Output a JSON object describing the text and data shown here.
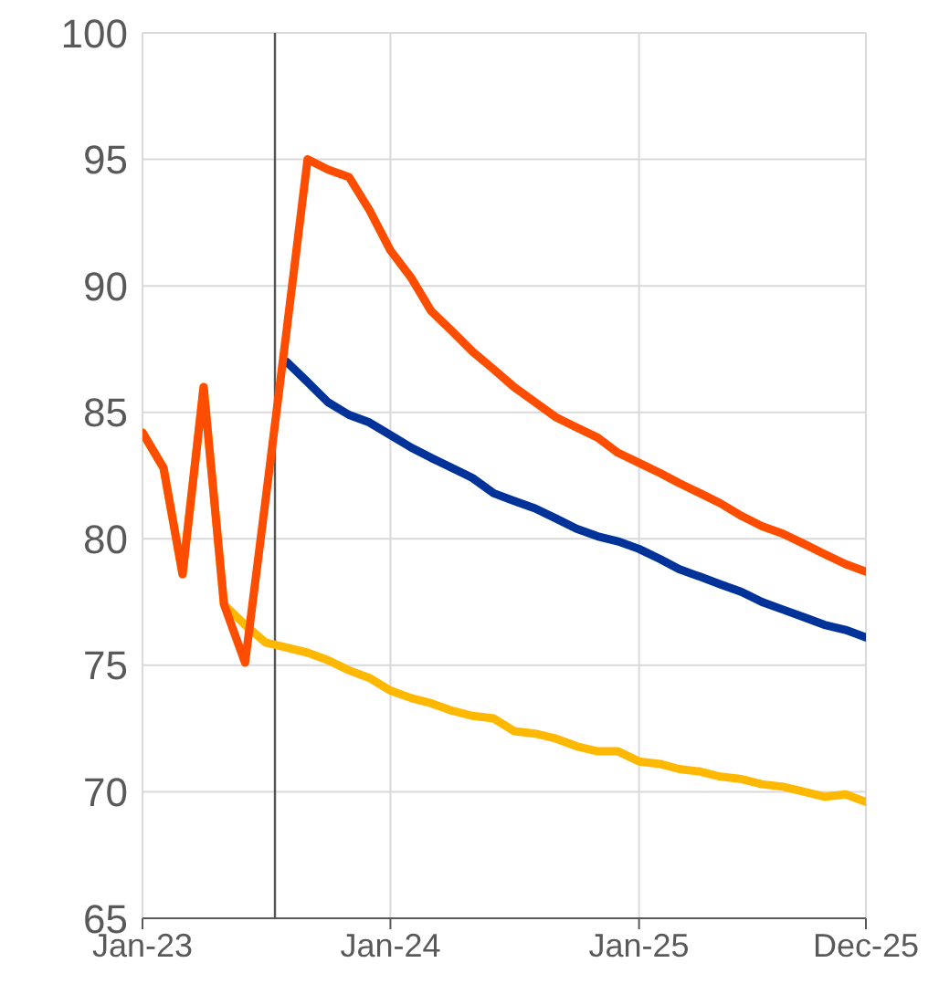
{
  "chart_data": {
    "type": "line",
    "x": [
      "2023-01",
      "2023-02",
      "2023-03",
      "2023-04",
      "2023-05",
      "2023-06",
      "2023-07",
      "2023-08",
      "2023-09",
      "2023-10",
      "2023-11",
      "2023-12",
      "2024-01",
      "2024-02",
      "2024-03",
      "2024-04",
      "2024-05",
      "2024-06",
      "2024-07",
      "2024-08",
      "2024-09",
      "2024-10",
      "2024-11",
      "2024-12",
      "2025-01",
      "2025-02",
      "2025-03",
      "2025-04",
      "2025-05",
      "2025-06",
      "2025-07",
      "2025-08",
      "2025-09",
      "2025-10",
      "2025-11",
      "2025-12"
    ],
    "series": [
      {
        "color": "#ffb800",
        "values": [
          84.2,
          82.8,
          78.6,
          86.0,
          77.4,
          76.6,
          75.9,
          75.7,
          75.5,
          75.2,
          74.8,
          74.5,
          74.0,
          73.7,
          73.5,
          73.2,
          73.0,
          72.9,
          72.4,
          72.3,
          72.1,
          71.8,
          71.6,
          71.6,
          71.2,
          71.1,
          70.9,
          70.8,
          70.6,
          70.5,
          70.3,
          70.2,
          70.0,
          69.8,
          69.9,
          69.6
        ]
      },
      {
        "color": "#003399",
        "values": [
          null,
          null,
          null,
          null,
          null,
          null,
          null,
          87.0,
          86.2,
          85.4,
          84.9,
          84.6,
          84.1,
          83.6,
          83.2,
          82.8,
          82.4,
          81.8,
          81.5,
          81.2,
          80.8,
          80.4,
          80.1,
          79.9,
          79.6,
          79.2,
          78.8,
          78.5,
          78.2,
          77.9,
          77.5,
          77.2,
          76.9,
          76.6,
          76.4,
          76.1
        ]
      },
      {
        "color": "#ff4d00",
        "values": [
          84.2,
          82.8,
          78.6,
          86.0,
          77.4,
          75.1,
          81.5,
          88.2,
          95.0,
          94.6,
          94.3,
          93.0,
          91.4,
          90.3,
          89.0,
          88.2,
          87.4,
          86.7,
          86.0,
          85.4,
          84.8,
          84.4,
          84.0,
          83.4,
          83.0,
          82.6,
          82.2,
          81.8,
          81.4,
          80.9,
          80.5,
          80.2,
          79.8,
          79.4,
          79.0,
          78.7
        ]
      }
    ],
    "xlim": [
      "2023-01",
      "2025-12"
    ],
    "xticks": [
      {
        "value": "2023-01",
        "label": "Jan-23"
      },
      {
        "value": "2024-01",
        "label": "Jan-24"
      },
      {
        "value": "2025-01",
        "label": "Jan-25"
      },
      {
        "value": "2025-12",
        "label": "Dec-25"
      }
    ],
    "ylim": [
      65,
      100
    ],
    "yticks": [
      65,
      70,
      75,
      80,
      85,
      90,
      95,
      100
    ],
    "grid": true,
    "marker": "none",
    "line_style": "solid",
    "ref_lines": [
      {
        "axis": "x",
        "value": "2023-07-15",
        "color": "#555555"
      }
    ]
  }
}
